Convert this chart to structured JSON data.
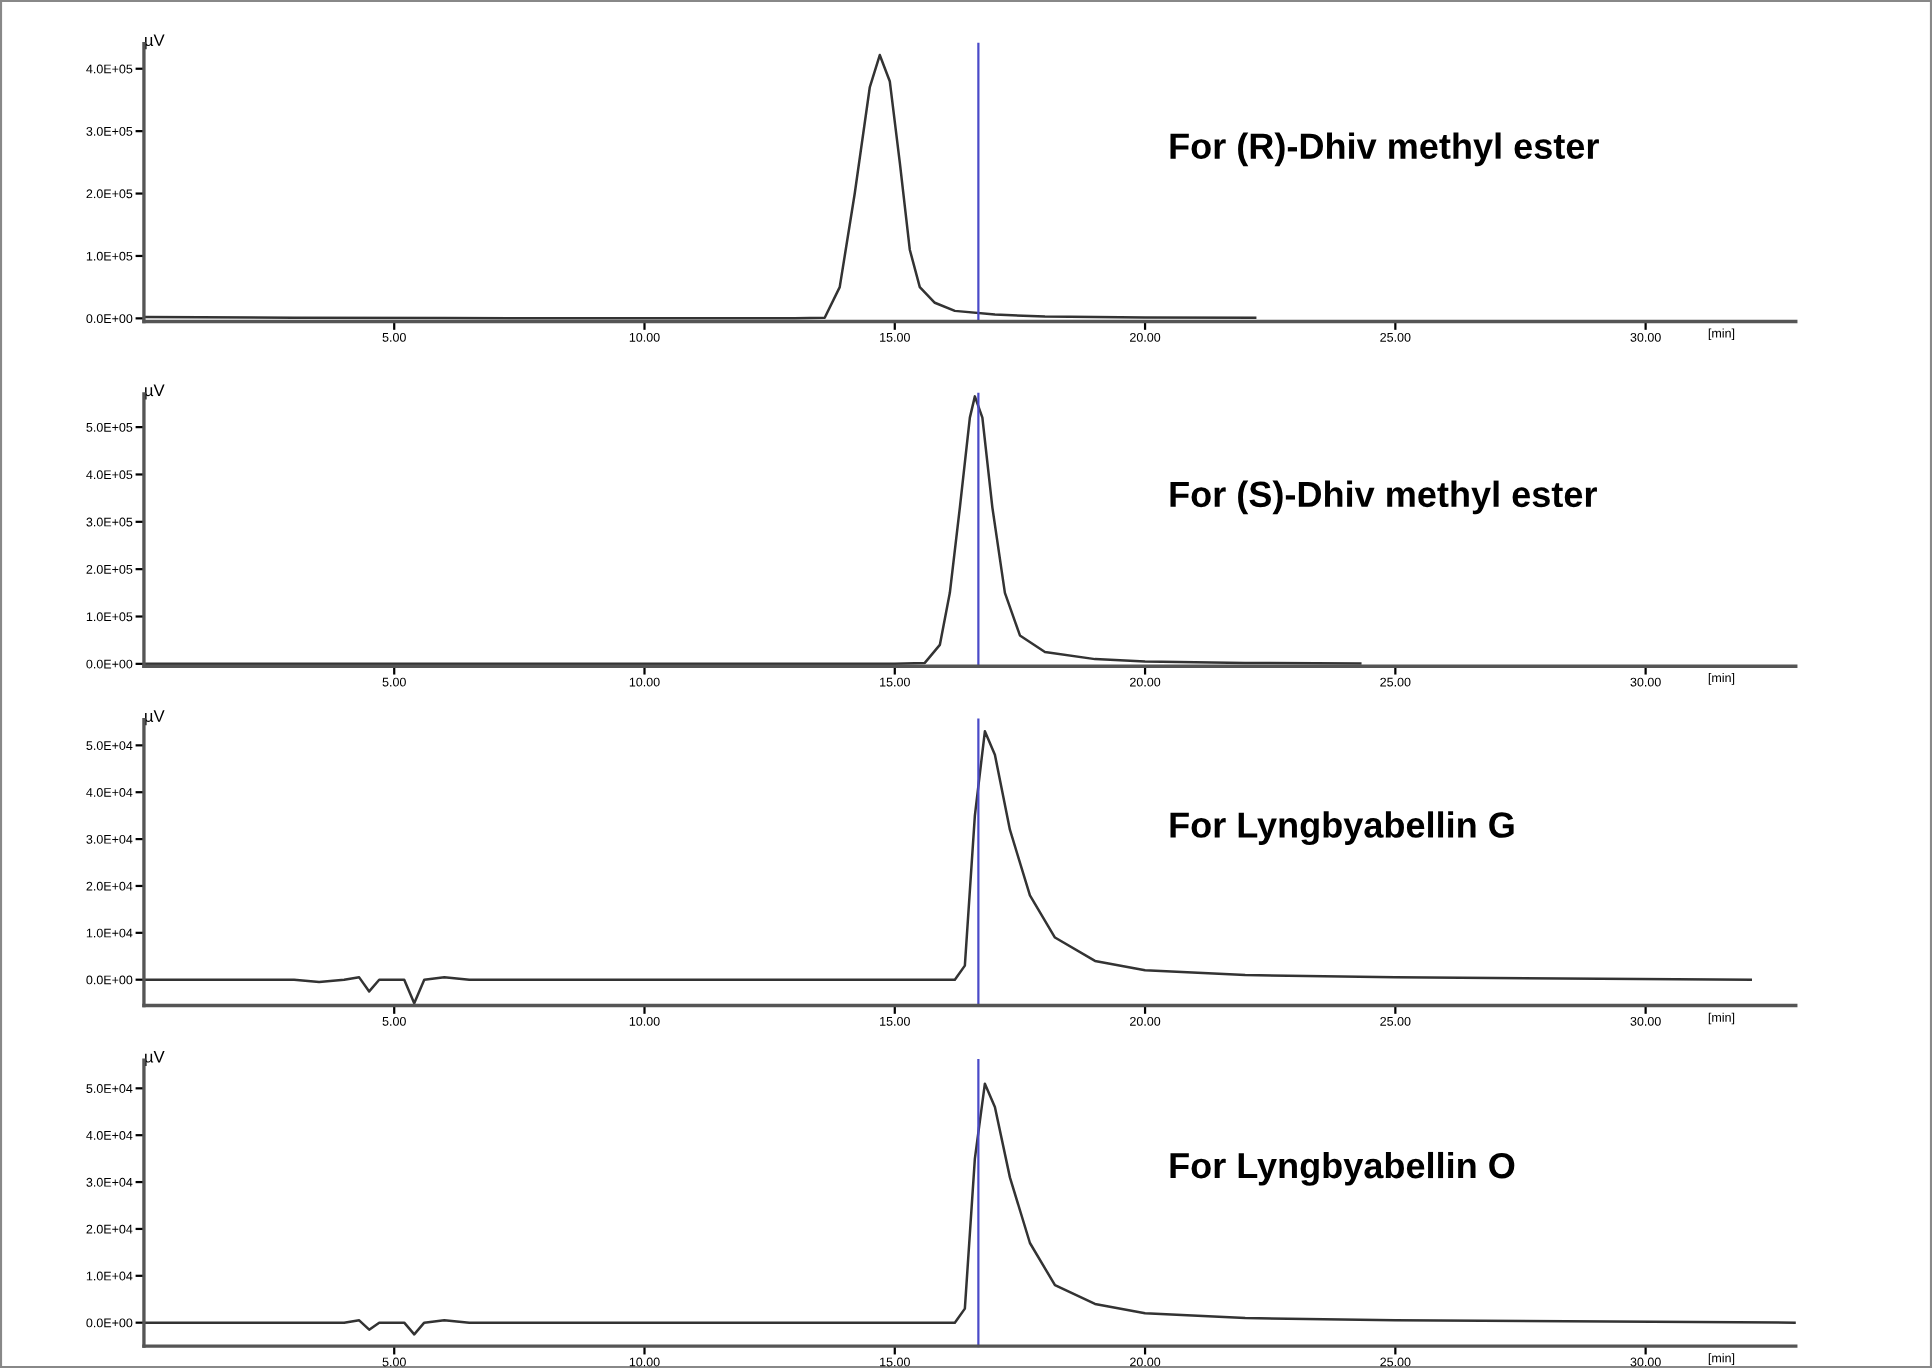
{
  "chart_data": [
    {
      "type": "line",
      "ylabel": "µV",
      "xlabel": "[min]",
      "annotations": [
        "For (R)-Dhiv methyl ester"
      ],
      "xlim": [
        0,
        33
      ],
      "xticks": [
        {
          "value": 5,
          "label": "5.00"
        },
        {
          "value": 10,
          "label": "10.00"
        },
        {
          "value": 15,
          "label": "15.00"
        },
        {
          "value": 20,
          "label": "20.00"
        },
        {
          "value": 25,
          "label": "25.00"
        },
        {
          "value": 30,
          "label": "30.00"
        }
      ],
      "ylim": [
        -5000,
        440000
      ],
      "yticks": [
        {
          "value": 0,
          "label": "0.0E+00"
        },
        {
          "value": 100000,
          "label": "1.0E+05"
        },
        {
          "value": 200000,
          "label": "2.0E+05"
        },
        {
          "value": 300000,
          "label": "3.0E+05"
        },
        {
          "value": 400000,
          "label": "4.0E+05"
        }
      ],
      "ref_lines": [
        {
          "axis": "x",
          "value": 16.67,
          "color": "#4a4ac8"
        }
      ],
      "grid": false,
      "legend": false,
      "marker": "none",
      "series": [
        {
          "color": "#333333",
          "x": [
            0,
            3,
            6,
            10,
            13,
            13.6,
            13.9,
            14.2,
            14.5,
            14.7,
            14.9,
            15.1,
            15.3,
            15.5,
            15.8,
            16.2,
            17,
            18,
            20,
            22.2
          ],
          "values": [
            2000,
            1000,
            500,
            0,
            0,
            1000,
            50000,
            200000,
            370000,
            422000,
            380000,
            250000,
            110000,
            50000,
            25000,
            12000,
            6000,
            3000,
            1500,
            1000
          ]
        }
      ]
    },
    {
      "type": "line",
      "ylabel": "µV",
      "xlabel": "[min]",
      "annotations": [
        "For (S)-Dhiv methyl ester"
      ],
      "xlim": [
        0,
        33
      ],
      "xticks": [
        {
          "value": 5,
          "label": "5.00"
        },
        {
          "value": 10,
          "label": "10.00"
        },
        {
          "value": 15,
          "label": "15.00"
        },
        {
          "value": 20,
          "label": "20.00"
        },
        {
          "value": 25,
          "label": "25.00"
        },
        {
          "value": 30,
          "label": "30.00"
        }
      ],
      "ylim": [
        -5000,
        570000
      ],
      "yticks": [
        {
          "value": 0,
          "label": "0.0E+00"
        },
        {
          "value": 100000,
          "label": "1.0E+05"
        },
        {
          "value": 200000,
          "label": "2.0E+05"
        },
        {
          "value": 300000,
          "label": "3.0E+05"
        },
        {
          "value": 400000,
          "label": "4.0E+05"
        },
        {
          "value": 500000,
          "label": "5.0E+05"
        }
      ],
      "ref_lines": [
        {
          "axis": "x",
          "value": 16.67,
          "color": "#4a4ac8"
        }
      ],
      "grid": false,
      "legend": false,
      "marker": "none",
      "series": [
        {
          "color": "#333333",
          "x": [
            0,
            5,
            10,
            15,
            15.6,
            15.9,
            16.1,
            16.3,
            16.5,
            16.6,
            16.75,
            16.95,
            17.2,
            17.5,
            18,
            19,
            20,
            22,
            24.3
          ],
          "values": [
            0,
            0,
            0,
            0,
            2000,
            40000,
            150000,
            330000,
            520000,
            565000,
            520000,
            330000,
            150000,
            60000,
            25000,
            10000,
            5000,
            2000,
            1000
          ]
        }
      ]
    },
    {
      "type": "line",
      "ylabel": "µV",
      "xlabel": "[min]",
      "annotations": [
        "For Lyngbyabellin G"
      ],
      "xlim": [
        0,
        33
      ],
      "xticks": [
        {
          "value": 5,
          "label": "5.00"
        },
        {
          "value": 10,
          "label": "10.00"
        },
        {
          "value": 15,
          "label": "15.00"
        },
        {
          "value": 20,
          "label": "20.00"
        },
        {
          "value": 25,
          "label": "25.00"
        },
        {
          "value": 30,
          "label": "30.00"
        }
      ],
      "ylim": [
        -5500,
        55500
      ],
      "yticks": [
        {
          "value": 0,
          "label": "0.0E+00"
        },
        {
          "value": 10000,
          "label": "1.0E+04"
        },
        {
          "value": 20000,
          "label": "2.0E+04"
        },
        {
          "value": 30000,
          "label": "3.0E+04"
        },
        {
          "value": 40000,
          "label": "4.0E+04"
        },
        {
          "value": 50000,
          "label": "5.0E+04"
        }
      ],
      "ref_lines": [
        {
          "axis": "x",
          "value": 16.67,
          "color": "#4a4ac8"
        }
      ],
      "grid": false,
      "legend": false,
      "marker": "none",
      "series": [
        {
          "color": "#333333",
          "x": [
            0,
            3,
            3.5,
            4,
            4.3,
            4.5,
            4.7,
            5.2,
            5.4,
            5.6,
            6,
            6.5,
            10,
            16.2,
            16.4,
            16.6,
            16.8,
            17,
            17.3,
            17.7,
            18.2,
            19,
            20,
            22,
            25,
            32.1
          ],
          "values": [
            0,
            0,
            -500,
            0,
            500,
            -2500,
            0,
            0,
            -5000,
            0,
            500,
            0,
            0,
            0,
            3000,
            35000,
            53000,
            48000,
            32000,
            18000,
            9000,
            4000,
            2000,
            1000,
            500,
            0
          ]
        }
      ]
    },
    {
      "type": "line",
      "ylabel": "µV",
      "xlabel": "[min]",
      "annotations": [
        "For Lyngbyabellin O"
      ],
      "xlim": [
        0,
        33
      ],
      "xticks": [
        {
          "value": 5,
          "label": "5.00"
        },
        {
          "value": 10,
          "label": "10.00"
        },
        {
          "value": 15,
          "label": "15.00"
        },
        {
          "value": 20,
          "label": "20.00"
        },
        {
          "value": 25,
          "label": "25.00"
        },
        {
          "value": 30,
          "label": "30.00"
        }
      ],
      "ylim": [
        -5000,
        56000
      ],
      "yticks": [
        {
          "value": 0,
          "label": "0.0E+00"
        },
        {
          "value": 10000,
          "label": "1.0E+04"
        },
        {
          "value": 20000,
          "label": "2.0E+04"
        },
        {
          "value": 30000,
          "label": "3.0E+04"
        },
        {
          "value": 40000,
          "label": "4.0E+04"
        },
        {
          "value": 50000,
          "label": "5.0E+04"
        }
      ],
      "ref_lines": [
        {
          "axis": "x",
          "value": 16.67,
          "color": "#4a4ac8"
        }
      ],
      "grid": false,
      "legend": false,
      "marker": "none",
      "series": [
        {
          "color": "#333333",
          "x": [
            0,
            4,
            4.3,
            4.5,
            4.7,
            5.2,
            5.4,
            5.6,
            6,
            6.5,
            10,
            16.2,
            16.4,
            16.6,
            16.8,
            17,
            17.3,
            17.7,
            18.2,
            19,
            20,
            22,
            25,
            33
          ],
          "values": [
            0,
            0,
            500,
            -1500,
            0,
            0,
            -2500,
            0,
            500,
            0,
            0,
            0,
            3000,
            35000,
            51000,
            46000,
            31000,
            17000,
            8000,
            4000,
            2000,
            1000,
            500,
            0
          ]
        }
      ]
    }
  ]
}
